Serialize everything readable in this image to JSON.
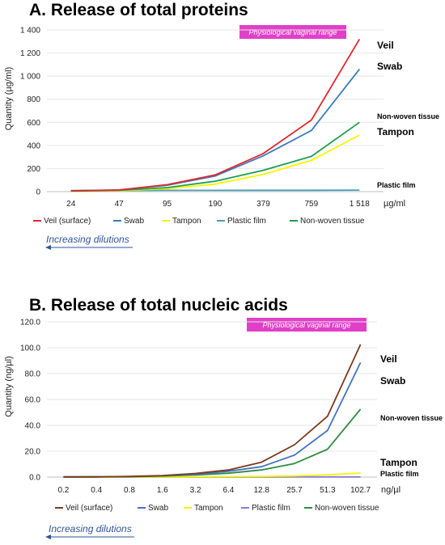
{
  "chart_data": [
    {
      "type": "line",
      "title": "A. Release of total proteins",
      "ylabel": "Quantity (µg/ml)",
      "x_unit": "µg/ml",
      "ylim": [
        0,
        1400
      ],
      "yticks": [
        "0",
        "200",
        "400",
        "600",
        "800",
        "1 000",
        "1 200",
        "1 400"
      ],
      "ytick_values": [
        0,
        200,
        400,
        600,
        800,
        1000,
        1200,
        1400
      ],
      "categories": [
        "24",
        "47",
        "95",
        "190",
        "379",
        "759",
        "1 518"
      ],
      "banner": "Physiological vaginal range",
      "dilution_note": "Increasing dilutions",
      "series": [
        {
          "name": "Veil (surface)",
          "end_label": "Veil",
          "color": "#e3262c",
          "values": [
            8,
            15,
            60,
            145,
            330,
            620,
            1320
          ]
        },
        {
          "name": "Swab",
          "end_label": "Swab",
          "color": "#3a7bbf",
          "values": [
            7,
            14,
            55,
            135,
            310,
            530,
            1060
          ]
        },
        {
          "name": "Tampon",
          "end_label": "Tampon",
          "color": "#f5f500",
          "values": [
            3,
            8,
            25,
            65,
            150,
            270,
            490
          ]
        },
        {
          "name": "Plastic film",
          "end_label": "Plastic film",
          "color": "#4a9fb8",
          "values": [
            10,
            10,
            11,
            11,
            12,
            12,
            13
          ]
        },
        {
          "name": "Non-woven tissue",
          "end_label": "Non-woven tissue",
          "color": "#1e9e50",
          "values": [
            5,
            11,
            35,
            90,
            185,
            305,
            600
          ]
        }
      ]
    },
    {
      "type": "line",
      "title": "B. Release of total nucleic acids",
      "ylabel": "Quantity (ng/µl)",
      "x_unit": "ng/µl",
      "ylim": [
        0,
        120
      ],
      "yticks": [
        "0.0",
        "20.0",
        "40.0",
        "60.0",
        "80.0",
        "100.0",
        "120.0"
      ],
      "ytick_values": [
        0,
        20,
        40,
        60,
        80,
        100,
        120
      ],
      "categories": [
        "0.2",
        "0.4",
        "0.8",
        "1.6",
        "3.2",
        "6.4",
        "12.8",
        "25.7",
        "51.3",
        "102.7"
      ],
      "banner": "Physiological vaginal range",
      "dilution_note": "Increasing dilutions",
      "series": [
        {
          "name": "Veil (surface)",
          "end_label": "Veil",
          "color": "#7b3a1e",
          "values": [
            0.1,
            0.2,
            0.5,
            1.2,
            2.8,
            5.5,
            11.5,
            25,
            47,
            102.5
          ]
        },
        {
          "name": "Swab",
          "end_label": "Swab",
          "color": "#4472c4",
          "values": [
            0.1,
            0.2,
            0.4,
            1.0,
            2.2,
            4.5,
            8.0,
            17,
            36,
            88.5
          ]
        },
        {
          "name": "Tampon",
          "end_label": "Tampon",
          "color": "#f5f500",
          "values": [
            0.0,
            0.0,
            0.1,
            0.1,
            0.2,
            0.3,
            0.5,
            0.9,
            1.8,
            3.0
          ]
        },
        {
          "name": "Plastic film",
          "end_label": "Plastic film",
          "color": "#8a7ad6",
          "values": [
            0.0,
            0.0,
            0.0,
            0.0,
            0.0,
            0.0,
            0.0,
            0.1,
            0.1,
            0.1
          ]
        },
        {
          "name": "Non-woven tissue",
          "end_label": "Non-woven tissue",
          "color": "#2e8b3e",
          "values": [
            0.1,
            0.1,
            0.3,
            0.8,
            1.6,
            3.0,
            5.5,
            10.5,
            21.5,
            52.5
          ]
        }
      ]
    }
  ]
}
